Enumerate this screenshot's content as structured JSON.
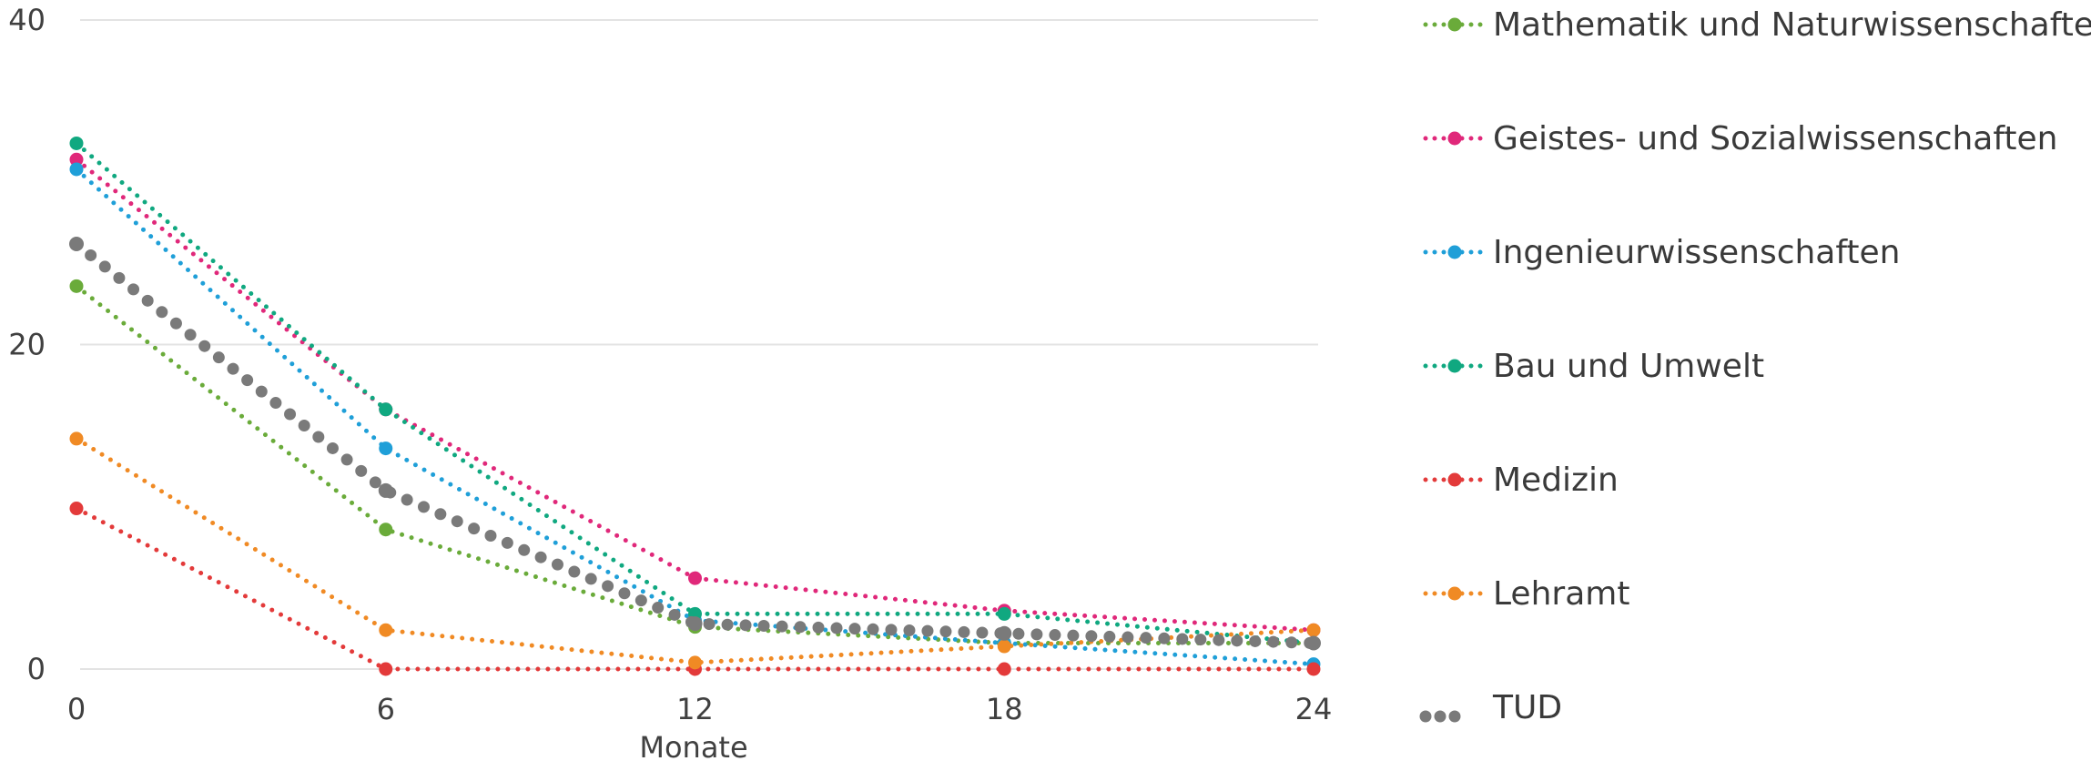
{
  "chart_data": {
    "type": "line",
    "x": [
      0,
      6,
      12,
      18,
      24
    ],
    "xlabel": "Monate",
    "ylabel": "",
    "ylim": [
      0,
      40
    ],
    "yticks": [
      0,
      20,
      40
    ],
    "grid": true,
    "legend_position": "right",
    "series": [
      {
        "name": "Mathematik und Naturwissenschaften",
        "color": "#6aab3a",
        "values": [
          23.6,
          8.6,
          2.6,
          1.6,
          1.6
        ]
      },
      {
        "name": "Geistes- und Sozialwissenschaften",
        "color": "#e0287a",
        "values": [
          31.4,
          16.0,
          5.6,
          3.6,
          2.4
        ]
      },
      {
        "name": "Ingenieurwissenschaften",
        "color": "#1f9fd8",
        "values": [
          30.8,
          13.6,
          3.0,
          1.6,
          0.3
        ]
      },
      {
        "name": "Bau und Umwelt",
        "color": "#10a880",
        "values": [
          32.4,
          16.0,
          3.4,
          3.4,
          1.6
        ]
      },
      {
        "name": "Medizin",
        "color": "#e33a3a",
        "values": [
          9.9,
          0.0,
          0.0,
          0.0,
          0.0
        ]
      },
      {
        "name": "Lehramt",
        "color": "#f08a24",
        "values": [
          14.2,
          2.4,
          0.4,
          1.4,
          2.4
        ]
      },
      {
        "name": "TUD",
        "color": "#7a7a7a",
        "values": [
          26.2,
          11.0,
          2.8,
          2.2,
          1.6
        ]
      }
    ]
  }
}
